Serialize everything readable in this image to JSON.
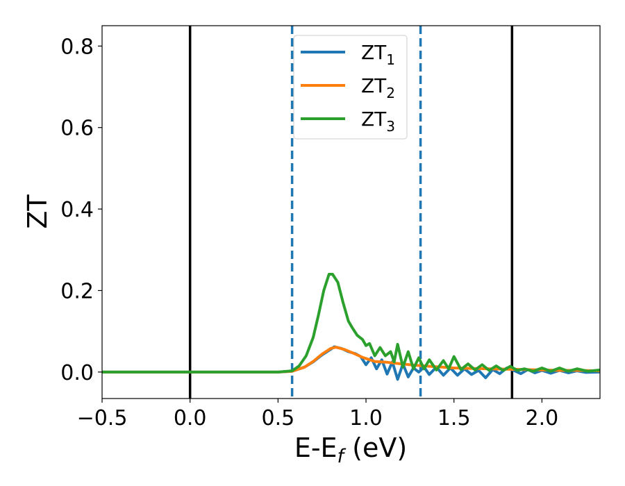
{
  "chart_data": {
    "type": "line",
    "xlabel": "E-E",
    "xlabel_sub": "f",
    "xlabel_unit": " (eV)",
    "ylabel": "ZT",
    "xlim": [
      -0.5,
      2.33
    ],
    "ylim": [
      -0.065,
      0.85
    ],
    "x_ticks": [
      -0.5,
      0.0,
      0.5,
      1.0,
      1.5,
      2.0
    ],
    "x_tick_labels": [
      "−0.5",
      "0.0",
      "0.5",
      "1.0",
      "1.5",
      "2.0"
    ],
    "y_ticks": [
      0.0,
      0.2,
      0.4,
      0.6,
      0.8
    ],
    "y_tick_labels": [
      "0.0",
      "0.2",
      "0.4",
      "0.6",
      "0.8"
    ],
    "grid": false,
    "legend_position": "upper-center",
    "series": [
      {
        "name": "ZT",
        "name_sub": "1",
        "color": "#1f77b4",
        "x": [
          -0.5,
          0.0,
          0.5,
          0.58,
          0.65,
          0.7,
          0.75,
          0.8,
          0.82,
          0.86,
          0.9,
          0.94,
          0.97,
          1.0,
          1.03,
          1.06,
          1.09,
          1.12,
          1.15,
          1.18,
          1.21,
          1.24,
          1.27,
          1.3,
          1.33,
          1.36,
          1.4,
          1.44,
          1.48,
          1.52,
          1.56,
          1.6,
          1.64,
          1.68,
          1.72,
          1.76,
          1.8,
          1.84,
          1.88,
          1.92,
          1.96,
          2.0,
          2.05,
          2.1,
          2.15,
          2.2,
          2.25,
          2.33
        ],
        "y": [
          0.0,
          0.0,
          0.0,
          0.002,
          0.012,
          0.025,
          0.042,
          0.056,
          0.062,
          0.058,
          0.05,
          0.045,
          0.038,
          0.018,
          0.035,
          0.008,
          0.03,
          -0.005,
          0.025,
          -0.018,
          0.02,
          -0.012,
          0.01,
          0.0,
          0.012,
          -0.006,
          0.012,
          -0.008,
          0.01,
          -0.008,
          0.008,
          -0.006,
          0.004,
          -0.014,
          0.006,
          -0.004,
          0.01,
          0.004,
          -0.004,
          0.006,
          -0.002,
          0.004,
          -0.003,
          0.004,
          -0.002,
          0.003,
          -0.001,
          0.0
        ]
      },
      {
        "name": "ZT",
        "name_sub": "2",
        "color": "#ff7f0e",
        "x": [
          -0.5,
          0.0,
          0.5,
          0.58,
          0.65,
          0.7,
          0.75,
          0.8,
          0.83,
          0.88,
          0.93,
          0.98,
          1.05,
          1.12,
          1.2,
          1.3,
          1.4,
          1.5,
          1.6,
          1.7,
          1.8,
          1.9,
          2.0,
          2.1,
          2.2,
          2.33
        ],
        "y": [
          0.0,
          0.0,
          0.0,
          0.002,
          0.012,
          0.026,
          0.044,
          0.058,
          0.061,
          0.055,
          0.046,
          0.036,
          0.026,
          0.024,
          0.02,
          0.016,
          0.013,
          0.01,
          0.009,
          0.008,
          0.007,
          0.006,
          0.005,
          0.004,
          0.004,
          0.003
        ]
      },
      {
        "name": "ZT",
        "name_sub": "3",
        "color": "#2ca02c",
        "x": [
          -0.5,
          0.0,
          0.5,
          0.58,
          0.62,
          0.66,
          0.7,
          0.73,
          0.76,
          0.79,
          0.81,
          0.84,
          0.87,
          0.9,
          0.92,
          0.95,
          0.98,
          1.0,
          1.02,
          1.05,
          1.08,
          1.11,
          1.14,
          1.16,
          1.18,
          1.21,
          1.24,
          1.27,
          1.3,
          1.33,
          1.36,
          1.4,
          1.44,
          1.47,
          1.5,
          1.54,
          1.58,
          1.62,
          1.66,
          1.7,
          1.74,
          1.78,
          1.82,
          1.86,
          1.9,
          1.95,
          2.0,
          2.05,
          2.1,
          2.15,
          2.2,
          2.26,
          2.33
        ],
        "y": [
          0.0,
          0.0,
          0.0,
          0.003,
          0.015,
          0.04,
          0.085,
          0.14,
          0.2,
          0.24,
          0.24,
          0.22,
          0.17,
          0.125,
          0.11,
          0.09,
          0.08,
          0.065,
          0.07,
          0.04,
          0.06,
          0.04,
          0.05,
          0.025,
          0.068,
          0.012,
          0.05,
          0.008,
          0.035,
          0.008,
          0.03,
          0.005,
          0.028,
          0.008,
          0.038,
          0.006,
          0.02,
          0.005,
          0.018,
          0.004,
          0.015,
          0.004,
          0.014,
          0.004,
          0.008,
          0.002,
          0.01,
          0.002,
          0.01,
          0.002,
          0.008,
          0.002,
          0.005
        ]
      }
    ],
    "vlines": [
      {
        "x": 0.0,
        "color": "#000000",
        "style": "solid"
      },
      {
        "x": 1.83,
        "color": "#000000",
        "style": "solid"
      },
      {
        "x": 0.58,
        "color": "#1f77b4",
        "style": "dashed"
      },
      {
        "x": 1.31,
        "color": "#1f77b4",
        "style": "dashed"
      }
    ]
  }
}
